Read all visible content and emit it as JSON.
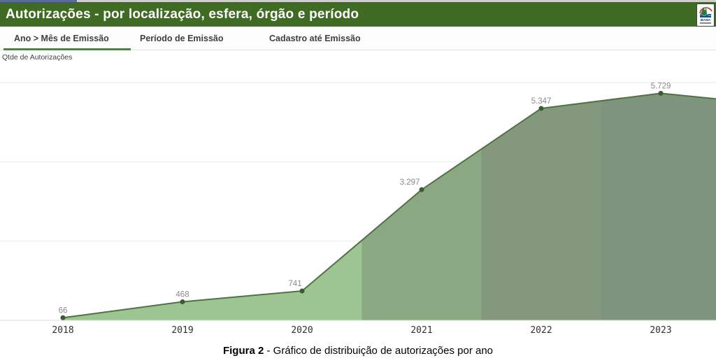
{
  "header": {
    "title": "Autorizações - por localização, esfera, órgão e período",
    "bg_color": "#3f6b24",
    "logo_name": "IBAMA"
  },
  "top_strip": {
    "left_color": "#5a6b9e",
    "right_color": "#ccd3c6"
  },
  "tabs": {
    "items": [
      {
        "label": "Ano > Mês de Emissão",
        "active": true
      },
      {
        "label": "Período de Emissão",
        "active": false
      },
      {
        "label": "Cadastro até Emissão",
        "active": false
      }
    ],
    "active_underline_color": "#3e8e2f"
  },
  "measure_label": "Qtde de Autorizações",
  "chart_data": {
    "type": "area",
    "title": "",
    "xlabel": "",
    "ylabel": "Qtde de Autorizações",
    "categories": [
      "2018",
      "2019",
      "2020",
      "2021",
      "2022",
      "2023"
    ],
    "values": [
      66,
      468,
      741,
      3297,
      5347,
      5729
    ],
    "point_labels": [
      "66",
      "468",
      "741",
      "3.297",
      "5.347",
      "5.729"
    ],
    "label_dx": [
      0,
      0,
      -10,
      -17,
      0,
      0
    ],
    "ylim": [
      0,
      6000
    ],
    "gridline_values": [
      2000,
      4000,
      6000
    ],
    "grid": true,
    "y_tick_labels_shown": false,
    "legend": "none",
    "band_colors": [
      "#9cc593",
      "#8aa881",
      "#83987c",
      "#7f947c"
    ],
    "line_color": "#4d7341",
    "dot_color": "#3a5c31",
    "value_label_color": "#8a8a8a",
    "axis_tick_color": "#303030",
    "gridline_color": "#ebebeb",
    "baseline_color": "#dcdcdc"
  },
  "caption": {
    "bold": "Figura 2",
    "rest": " - Gráfico de distribuição de autorizações por ano"
  }
}
